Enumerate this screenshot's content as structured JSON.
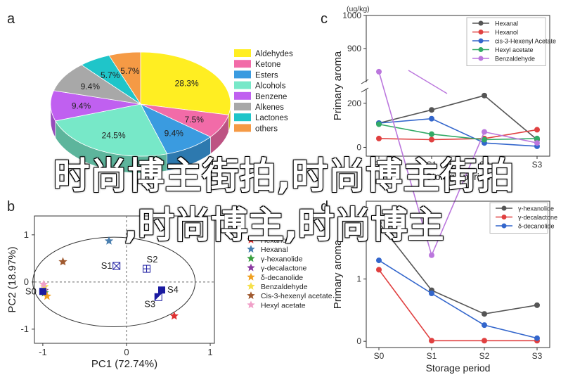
{
  "panel_letters": [
    "a",
    "b",
    "c",
    "d"
  ],
  "overlay_text": {
    "line1": "时尚博主街拍,时尚博主街拍",
    "line2": ",时尚博主,时尚博主"
  },
  "chart_data": [
    {
      "panel": "a",
      "type": "pie",
      "title": "",
      "legend_position": "right",
      "labels": [
        "Aldehydes",
        "Ketone",
        "Esters",
        "Alcohols",
        "Benzene",
        "Alkenes",
        "Lactones",
        "others"
      ],
      "values": [
        28.3,
        7.5,
        9.4,
        24.5,
        9.4,
        9.4,
        5.7,
        5.7
      ],
      "value_labels": [
        "28.3%",
        "7.5%",
        "9.4%",
        "24.5%",
        "9.4%",
        "9.4%",
        "5.7%",
        "5.7%"
      ],
      "colors": [
        "#ffee22",
        "#f26ba8",
        "#3a9be0",
        "#77e8c8",
        "#c060f0",
        "#a8a8a8",
        "#1fc5c9",
        "#f59a45"
      ]
    },
    {
      "panel": "b",
      "type": "scatter",
      "xlabel": "PC1 (72.74%)",
      "ylabel": "PC2 (18.97%)",
      "xlim": [
        -1.1,
        1.05
      ],
      "ylim": [
        -1.3,
        1.4
      ],
      "xticks": [
        "-1",
        "0",
        "1"
      ],
      "yticks": [
        "-1",
        "0",
        "1"
      ],
      "legend_position": "right",
      "loadings": [
        {
          "name": "Hexanol",
          "x": 0.57,
          "y": -0.72,
          "color": "#e03030"
        },
        {
          "name": "Hexanal",
          "x": -0.21,
          "y": 0.87,
          "color": "#4a7fb0"
        },
        {
          "name": "γ-hexanolide",
          "x": -0.98,
          "y": -0.23,
          "color": "#3aa040"
        },
        {
          "name": "γ-decalactone",
          "x": -0.98,
          "y": -0.18,
          "color": "#8a3aa0"
        },
        {
          "name": "δ-decanolide",
          "x": -0.95,
          "y": -0.3,
          "color": "#f0a020"
        },
        {
          "name": "Benzaldehyde",
          "x": -0.98,
          "y": -0.1,
          "color": "#f6e04a"
        },
        {
          "name": "Cis-3-hexenyl acetate",
          "x": -0.76,
          "y": 0.43,
          "color": "#a05a30"
        },
        {
          "name": "Hexyl acetate",
          "x": -0.99,
          "y": -0.05,
          "color": "#f0a0c8"
        }
      ],
      "samples": [
        {
          "name": "S0",
          "x": -1.0,
          "y": -0.2,
          "marker": "filled-square",
          "color": "#1a1aa0"
        },
        {
          "name": "S1",
          "x": -0.12,
          "y": 0.34,
          "marker": "crossed-square",
          "color": "#1a1aa0"
        },
        {
          "name": "S2",
          "x": 0.24,
          "y": 0.28,
          "marker": "gridded-square",
          "color": "#1a1aa0"
        },
        {
          "name": "S3",
          "x": 0.38,
          "y": -0.32,
          "marker": "half-square",
          "color": "#1a1aa0"
        },
        {
          "name": "S4",
          "x": 0.42,
          "y": -0.17,
          "marker": "filled-square",
          "color": "#1a1aa0"
        }
      ]
    },
    {
      "panel": "c",
      "type": "line",
      "xlabel": "Storage period",
      "ylabel": "Primary aroma",
      "unit": "(ug/kg)",
      "categories": [
        "S0",
        "S1",
        "S2",
        "S3"
      ],
      "y_broken": true,
      "y_lower_range": [
        -40,
        260
      ],
      "y_upper_range": [
        800,
        1000
      ],
      "y_lower_ticks": [
        "0",
        "200"
      ],
      "y_upper_ticks": [
        "900",
        "1000"
      ],
      "legend_position": "top-right",
      "series": [
        {
          "name": "Hexanal",
          "color": "#555555",
          "values": [
            110,
            170,
            235,
            35
          ]
        },
        {
          "name": "Hexanol",
          "color": "#e04040",
          "values": [
            40,
            35,
            40,
            80
          ]
        },
        {
          "name": "cis-3-Hexenyl Acetate",
          "color": "#3366cc",
          "values": [
            110,
            130,
            20,
            5
          ]
        },
        {
          "name": "Hexyl acetate",
          "color": "#33aa66",
          "values": [
            105,
            60,
            35,
            40
          ]
        },
        {
          "name": "Benzaldehyde",
          "color": "#bb77dd",
          "values": [
            830,
            275,
            70,
            20
          ]
        }
      ]
    },
    {
      "panel": "d",
      "type": "line",
      "xlabel": "Storage period",
      "ylabel": "Primary aroma",
      "categories": [
        "S0",
        "S1",
        "S2",
        "S3"
      ],
      "ylim": [
        -0.1,
        2.25
      ],
      "yticks": [
        "0",
        "1",
        "2"
      ],
      "legend_position": "top-right",
      "series": [
        {
          "name": "γ-hexanolide",
          "color": "#555555",
          "values": [
            1.9,
            0.82,
            0.44,
            0.58
          ]
        },
        {
          "name": "γ-decalactone",
          "color": "#e04040",
          "values": [
            1.15,
            0.01,
            0.01,
            0.01
          ]
        },
        {
          "name": "δ-decanolide",
          "color": "#3366cc",
          "values": [
            1.3,
            0.77,
            0.26,
            0.05
          ]
        }
      ]
    }
  ]
}
